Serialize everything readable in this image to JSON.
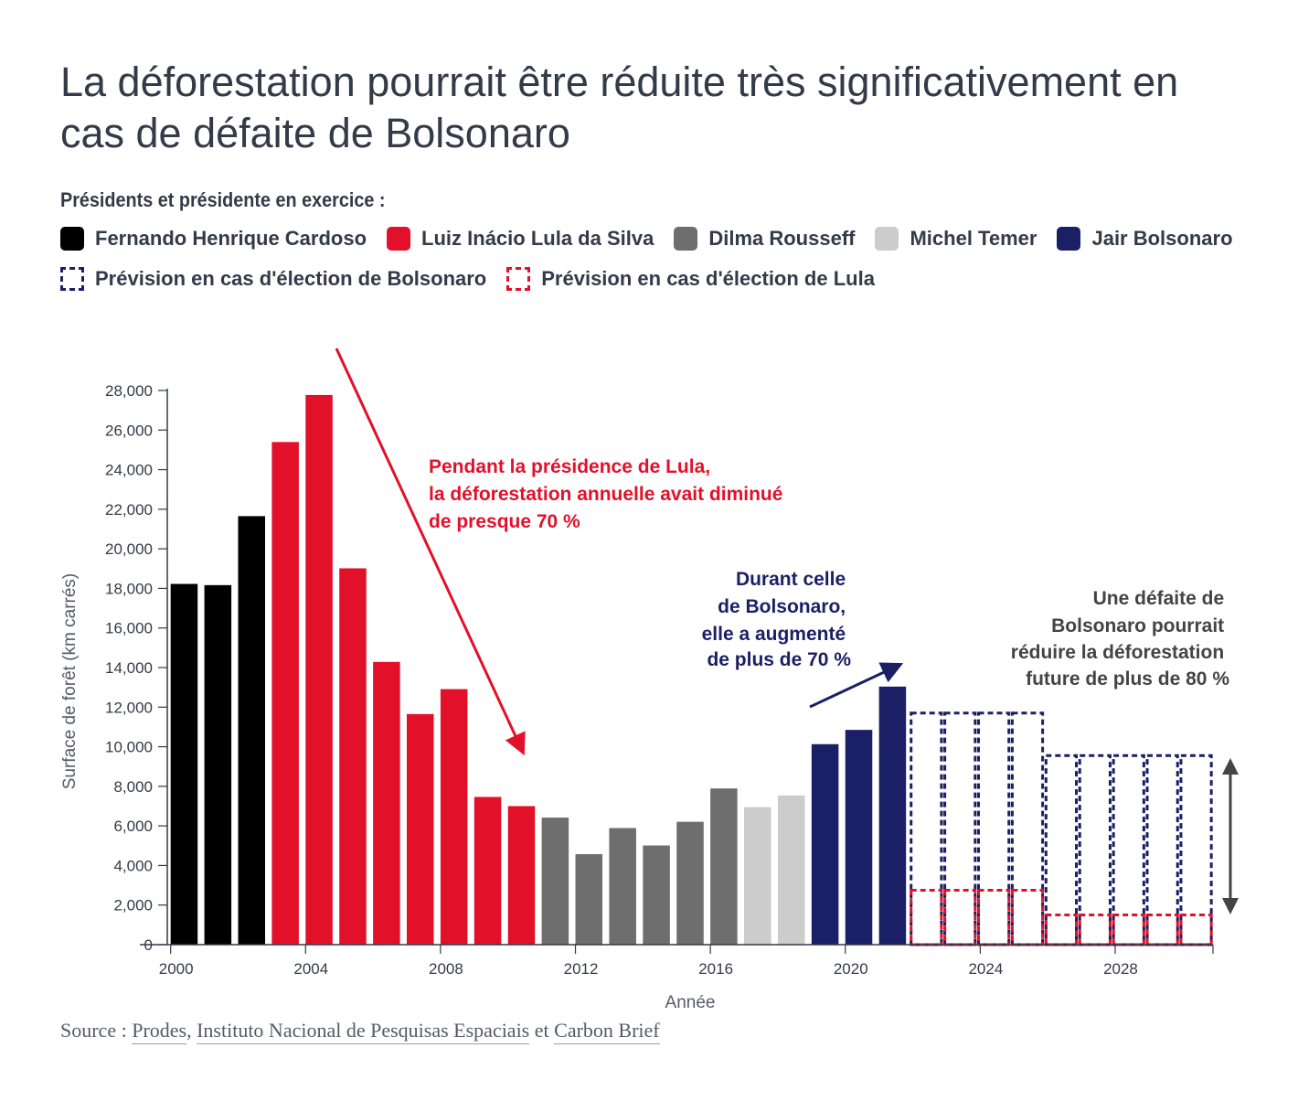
{
  "title": "La déforestation pourrait être réduite très significativement en cas de défaite de Bolsonaro",
  "legend": {
    "heading": "Présidents et présidente en exercice :",
    "items": [
      {
        "label": "Fernando Henrique Cardoso",
        "color": "#000000",
        "style": "solid"
      },
      {
        "label": "Luiz Inácio Lula da Silva",
        "color": "#e3102a",
        "style": "solid"
      },
      {
        "label": "Dilma Rousseff",
        "color": "#6e6e6e",
        "style": "solid"
      },
      {
        "label": "Michel Temer",
        "color": "#cccccc",
        "style": "solid"
      },
      {
        "label": "Jair Bolsonaro",
        "color": "#1b1f66",
        "style": "solid"
      },
      {
        "label": "Prévision en cas d'élection de Bolsonaro",
        "color": "#1b1f66",
        "style": "dashed"
      },
      {
        "label": "Prévision en cas d'élection de Lula",
        "color": "#e3102a",
        "style": "dashed"
      }
    ]
  },
  "source": {
    "prefix": "Source : ",
    "links": [
      "Prodes",
      "Instituto Nacional de Pesquisas Espaciais",
      "Carbon Brief"
    ],
    "sep1": ", ",
    "sep2": " et "
  },
  "chart_data": {
    "type": "bar",
    "xlabel": "Année",
    "ylabel": "Surface de forêt (km carrés)",
    "ylim": [
      0,
      28000
    ],
    "yticks": [
      0,
      2000,
      4000,
      6000,
      8000,
      10000,
      12000,
      14000,
      16000,
      18000,
      20000,
      22000,
      24000,
      26000,
      28000
    ],
    "ytick_labels": [
      "0",
      "2,000",
      "4,000",
      "6,000",
      "8,000",
      "10,000",
      "12,000",
      "14,000",
      "16,000",
      "18,000",
      "20,000",
      "22,000",
      "24,000",
      "26,000",
      "28,000"
    ],
    "xticks": [
      2000,
      2004,
      2008,
      2012,
      2016,
      2020,
      2024,
      2028
    ],
    "xtick_labels": [
      "2000",
      "2004",
      "2008",
      "2012",
      "2016",
      "2020",
      "2024",
      "2028"
    ],
    "series": [
      {
        "name": "Fernando Henrique Cardoso",
        "color": "#000000",
        "style": "solid",
        "x": [
          2000,
          2001,
          2002
        ],
        "values": [
          18226,
          18165,
          21651
        ]
      },
      {
        "name": "Luiz Inácio Lula da Silva",
        "color": "#e3102a",
        "style": "solid",
        "x": [
          2003,
          2004,
          2005,
          2006,
          2007,
          2008,
          2009,
          2010
        ],
        "values": [
          25396,
          27772,
          19014,
          14286,
          11651,
          12911,
          7464,
          7000
        ]
      },
      {
        "name": "Dilma Rousseff",
        "color": "#6e6e6e",
        "style": "solid",
        "x": [
          2011,
          2012,
          2013,
          2014,
          2015,
          2016
        ],
        "values": [
          6418,
          4571,
          5891,
          5012,
          6207,
          7893
        ]
      },
      {
        "name": "Michel Temer",
        "color": "#cccccc",
        "style": "solid",
        "x": [
          2017,
          2018
        ],
        "values": [
          6947,
          7536
        ]
      },
      {
        "name": "Jair Bolsonaro",
        "color": "#1b1f66",
        "style": "solid",
        "x": [
          2019,
          2020,
          2021
        ],
        "values": [
          10129,
          10851,
          13038
        ]
      },
      {
        "name": "Prévision en cas d'élection de Bolsonaro",
        "color": "#1b1f66",
        "style": "dashed",
        "x": [
          2022,
          2023,
          2024,
          2025,
          2026,
          2027,
          2028,
          2029,
          2030
        ],
        "values": [
          11700,
          11700,
          11700,
          11700,
          9550,
          9550,
          9550,
          9550,
          9550
        ]
      },
      {
        "name": "Prévision en cas d'élection de Lula",
        "color": "#e3102a",
        "style": "dashed",
        "x": [
          2022,
          2023,
          2024,
          2025,
          2026,
          2027,
          2028,
          2029,
          2030
        ],
        "values": [
          2750,
          2750,
          2750,
          2750,
          1500,
          1500,
          1500,
          1500,
          1500
        ]
      }
    ],
    "annotations": [
      {
        "lines": [
          "Pendant la présidence de Lula,",
          "la déforestation annuelle avait diminué",
          "de presque 70 %"
        ],
        "color": "#e3102a",
        "align": "left"
      },
      {
        "lines": [
          "Durant celle",
          "de Bolsonaro,",
          "elle a augmenté",
          "de plus de 70 %"
        ],
        "color": "#1b1f66",
        "align": "right"
      },
      {
        "lines": [
          "Une défaite de",
          "Bolsonaro pourrait",
          "réduire la déforestation",
          "future de plus de 80 %"
        ],
        "color": "#444444",
        "align": "right"
      }
    ]
  }
}
